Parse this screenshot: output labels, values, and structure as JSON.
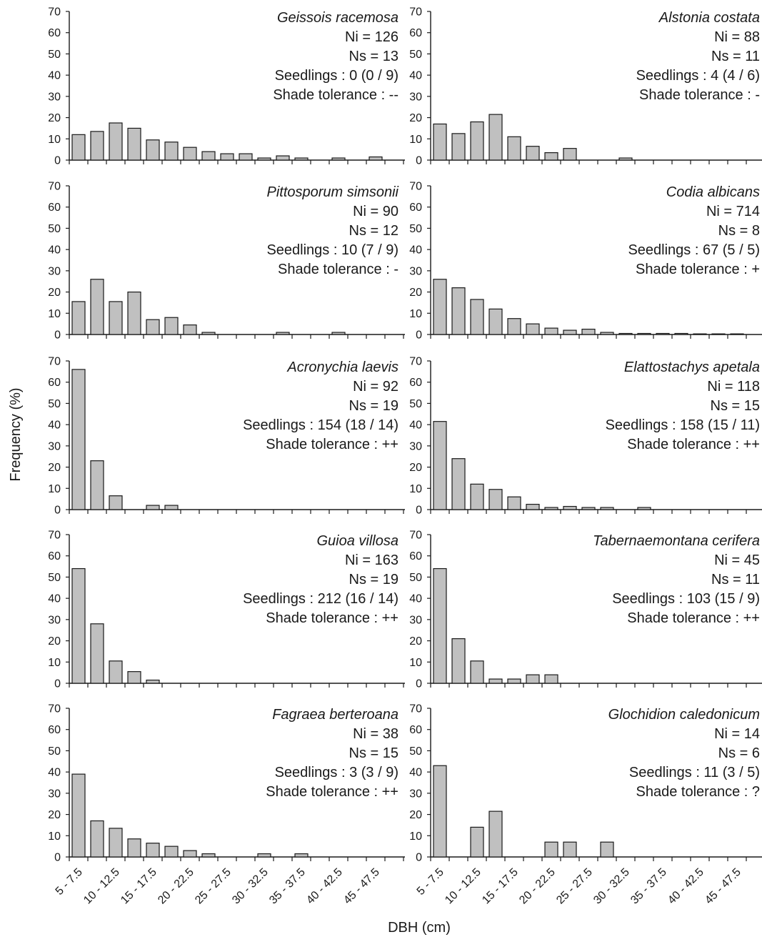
{
  "ylabel": "Frequency (%)",
  "xlabel": "DBH (cm)",
  "y_ticks": [
    0,
    10,
    20,
    30,
    40,
    50,
    60,
    70
  ],
  "x_tick_labels": [
    "5 - 7.5",
    "10 - 12.5",
    "15 - 17.5",
    "20 - 22.5",
    "25 - 27.5",
    "30 - 32.5",
    "35 - 37.5",
    "40 - 42.5",
    "45 - 47.5"
  ],
  "chart_data": [
    {
      "type": "bar",
      "species": "Geissois racemosa",
      "lines": [
        "Ni = 126",
        "Ns = 13",
        "Seedlings : 0 (0 / 9)",
        "Shade tolerance : --"
      ],
      "values": [
        12,
        13.5,
        17.5,
        15,
        9.5,
        8.5,
        6,
        4,
        3,
        3,
        1,
        2,
        1,
        0,
        1,
        0,
        1.5,
        0
      ],
      "ylim": [
        0,
        70
      ]
    },
    {
      "type": "bar",
      "species": "Alstonia costata",
      "lines": [
        "Ni = 88",
        "Ns = 11",
        "Seedlings : 4 (4 / 6)",
        "Shade tolerance : -"
      ],
      "values": [
        17,
        12.5,
        18,
        21.5,
        11,
        6.5,
        3.5,
        5.5,
        0,
        0,
        1,
        0,
        0,
        0,
        0,
        0,
        0,
        0
      ],
      "ylim": [
        0,
        70
      ]
    },
    {
      "type": "bar",
      "species": "Pittosporum simsonii",
      "lines": [
        "Ni = 90",
        "Ns = 12",
        "Seedlings : 10 (7 / 9)",
        "Shade tolerance : -"
      ],
      "values": [
        15.5,
        26,
        15.5,
        20,
        7,
        8,
        4.5,
        1,
        0,
        0,
        0,
        1,
        0,
        0,
        1,
        0,
        0,
        0
      ],
      "ylim": [
        0,
        70
      ]
    },
    {
      "type": "bar",
      "species": "Codia albicans",
      "lines": [
        "Ni = 714",
        "Ns = 8",
        "Seedlings : 67 (5 / 5)",
        "Shade tolerance : +"
      ],
      "values": [
        26,
        22,
        16.5,
        12,
        7.5,
        5,
        3,
        2,
        2.5,
        1,
        0.5,
        0.5,
        0.5,
        0.5,
        0.3,
        0.3,
        0.3,
        0
      ],
      "ylim": [
        0,
        70
      ]
    },
    {
      "type": "bar",
      "species": "Acronychia laevis",
      "lines": [
        "Ni = 92",
        "Ns = 19",
        "Seedlings : 154 (18 / 14)",
        "Shade tolerance : ++"
      ],
      "values": [
        66,
        23,
        6.5,
        0,
        2,
        2,
        0,
        0,
        0,
        0,
        0,
        0,
        0,
        0,
        0,
        0,
        0,
        0
      ],
      "ylim": [
        0,
        70
      ]
    },
    {
      "type": "bar",
      "species": "Elattostachys apetala",
      "lines": [
        "Ni = 118",
        "Ns = 15",
        "Seedlings : 158 (15 / 11)",
        "Shade tolerance : ++"
      ],
      "values": [
        41.5,
        24,
        12,
        9.5,
        6,
        2.5,
        1,
        1.5,
        1,
        1,
        0,
        1,
        0,
        0,
        0,
        0,
        0,
        0
      ],
      "ylim": [
        0,
        70
      ]
    },
    {
      "type": "bar",
      "species": "Guioa villosa",
      "lines": [
        "Ni = 163",
        "Ns = 19",
        "Seedlings : 212 (16 / 14)",
        "Shade tolerance : ++"
      ],
      "values": [
        54,
        28,
        10.5,
        5.5,
        1.5,
        0,
        0,
        0,
        0,
        0,
        0,
        0,
        0,
        0,
        0,
        0,
        0,
        0
      ],
      "ylim": [
        0,
        70
      ]
    },
    {
      "type": "bar",
      "species": "Tabernaemontana cerifera",
      "lines": [
        "Ni = 45",
        "Ns = 11",
        "Seedlings : 103 (15 / 9)",
        "Shade tolerance : ++"
      ],
      "values": [
        54,
        21,
        10.5,
        2,
        2,
        4,
        4,
        0,
        0,
        0,
        0,
        0,
        0,
        0,
        0,
        0,
        0,
        0
      ],
      "ylim": [
        0,
        70
      ]
    },
    {
      "type": "bar",
      "species": "Fagraea berteroana",
      "lines": [
        "Ni = 38",
        "Ns = 15",
        "Seedlings : 3 (3 / 9)",
        "Shade tolerance : ++"
      ],
      "values": [
        39,
        17,
        13.5,
        8.5,
        6.5,
        5,
        3,
        1.5,
        0,
        0,
        1.5,
        0,
        1.5,
        0,
        0,
        0,
        0,
        0
      ],
      "ylim": [
        0,
        70
      ]
    },
    {
      "type": "bar",
      "species": "Glochidion caledonicum",
      "lines": [
        "Ni = 14",
        "Ns = 6",
        "Seedlings : 11 (3 / 5)",
        "Shade tolerance : ?"
      ],
      "values": [
        43,
        0,
        14,
        21.5,
        0,
        0,
        7,
        7,
        0,
        7,
        0,
        0,
        0,
        0,
        0,
        0,
        0,
        0
      ],
      "ylim": [
        0,
        70
      ]
    }
  ]
}
